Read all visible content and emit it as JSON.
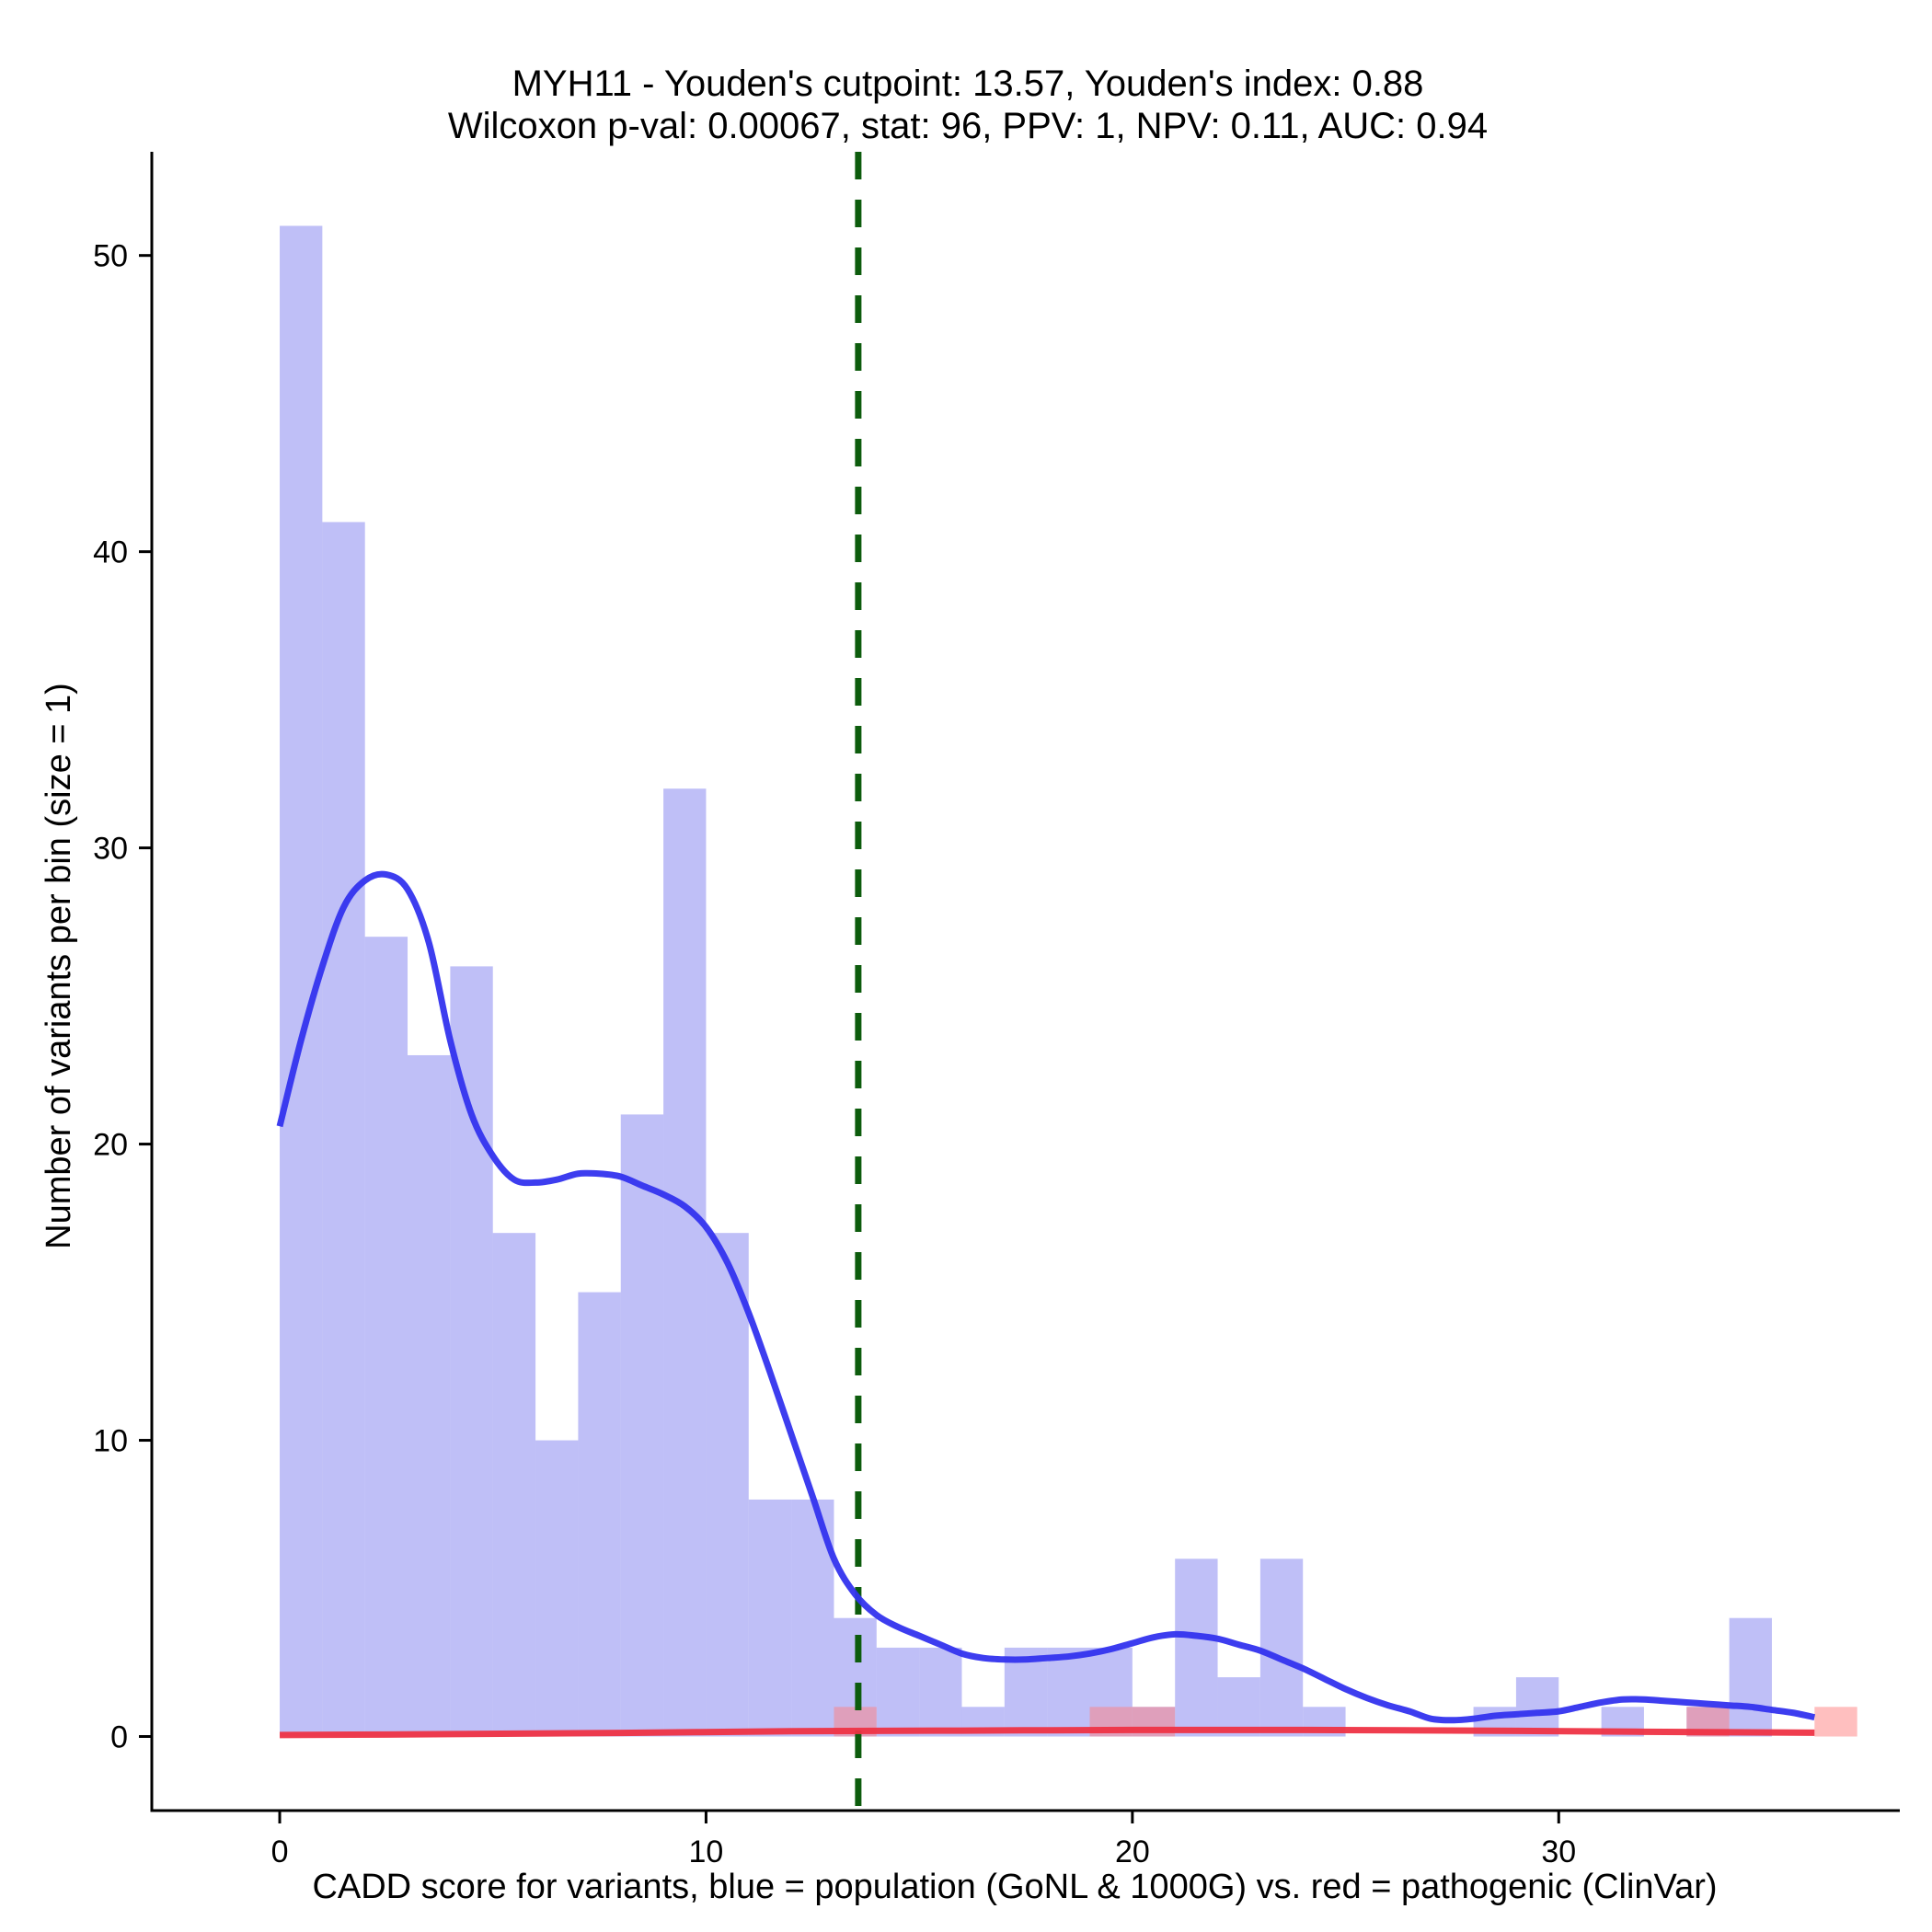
{
  "chart_data": {
    "type": "bar",
    "title_lines": [
      "MYH11 - Youden's cutpoint: 13.57, Youden's index: 0.88",
      "Wilcoxon p-val: 0.00067, stat: 96, PPV: 1, NPV: 0.11, AUC: 0.94"
    ],
    "xlabel": "CADD score for variants, blue = population (GoNL & 1000G) vs. red = pathogenic (ClinVar)",
    "ylabel": "Number of variants per bin (size = 1)",
    "xlim": [
      -3,
      38
    ],
    "ylim": [
      -2.5,
      53.5
    ],
    "xticks": [
      0,
      10,
      20,
      30
    ],
    "yticks": [
      0,
      10,
      20,
      30,
      40,
      50
    ],
    "bin_size": 1,
    "series": [
      {
        "name": "population (GoNL & 1000G)",
        "color": "#8080f0",
        "bins": [
          {
            "x": 0,
            "count": 51
          },
          {
            "x": 1,
            "count": 41
          },
          {
            "x": 2,
            "count": 27
          },
          {
            "x": 3,
            "count": 23
          },
          {
            "x": 4,
            "count": 26
          },
          {
            "x": 5,
            "count": 17
          },
          {
            "x": 6,
            "count": 10
          },
          {
            "x": 7,
            "count": 15
          },
          {
            "x": 8,
            "count": 21
          },
          {
            "x": 9,
            "count": 32
          },
          {
            "x": 10,
            "count": 17
          },
          {
            "x": 11,
            "count": 8
          },
          {
            "x": 12,
            "count": 8
          },
          {
            "x": 13,
            "count": 4
          },
          {
            "x": 14,
            "count": 3
          },
          {
            "x": 15,
            "count": 3
          },
          {
            "x": 16,
            "count": 1
          },
          {
            "x": 17,
            "count": 3
          },
          {
            "x": 18,
            "count": 3
          },
          {
            "x": 19,
            "count": 3
          },
          {
            "x": 20,
            "count": 1
          },
          {
            "x": 21,
            "count": 6
          },
          {
            "x": 22,
            "count": 2
          },
          {
            "x": 23,
            "count": 6
          },
          {
            "x": 24,
            "count": 1
          },
          {
            "x": 28,
            "count": 1
          },
          {
            "x": 29,
            "count": 2
          },
          {
            "x": 31,
            "count": 1
          },
          {
            "x": 33,
            "count": 1
          },
          {
            "x": 34,
            "count": 4
          }
        ]
      },
      {
        "name": "pathogenic (ClinVar)",
        "color": "#ff8080",
        "bins": [
          {
            "x": 13,
            "count": 1
          },
          {
            "x": 19,
            "count": 1
          },
          {
            "x": 20,
            "count": 1
          },
          {
            "x": 33,
            "count": 1
          },
          {
            "x": 36,
            "count": 1
          }
        ]
      }
    ],
    "density_curves": [
      {
        "name": "population density",
        "color": "#3333ee",
        "points": [
          [
            0,
            20.6
          ],
          [
            0.5,
            23.5
          ],
          [
            1,
            26
          ],
          [
            1.5,
            28
          ],
          [
            2,
            28.9
          ],
          [
            2.5,
            29.1
          ],
          [
            3,
            28.6
          ],
          [
            3.5,
            26.8
          ],
          [
            4,
            23.5
          ],
          [
            4.5,
            21
          ],
          [
            5,
            19.6
          ],
          [
            5.5,
            18.8
          ],
          [
            6,
            18.7
          ],
          [
            6.5,
            18.8
          ],
          [
            7,
            19.0
          ],
          [
            7.5,
            19.0
          ],
          [
            8,
            18.9
          ],
          [
            8.5,
            18.6
          ],
          [
            9,
            18.3
          ],
          [
            9.5,
            17.9
          ],
          [
            10,
            17.2
          ],
          [
            10.5,
            16
          ],
          [
            11,
            14.3
          ],
          [
            11.5,
            12.3
          ],
          [
            12,
            10.2
          ],
          [
            12.5,
            8.1
          ],
          [
            13,
            6.0
          ],
          [
            13.5,
            4.8
          ],
          [
            14,
            4.1
          ],
          [
            14.5,
            3.7
          ],
          [
            15,
            3.4
          ],
          [
            15.5,
            3.1
          ],
          [
            16,
            2.8
          ],
          [
            16.5,
            2.65
          ],
          [
            17,
            2.6
          ],
          [
            17.5,
            2.6
          ],
          [
            18,
            2.65
          ],
          [
            18.5,
            2.7
          ],
          [
            19,
            2.8
          ],
          [
            19.5,
            2.95
          ],
          [
            20,
            3.15
          ],
          [
            20.5,
            3.35
          ],
          [
            21,
            3.45
          ],
          [
            21.5,
            3.4
          ],
          [
            22,
            3.3
          ],
          [
            22.5,
            3.1
          ],
          [
            23,
            2.9
          ],
          [
            23.5,
            2.6
          ],
          [
            24,
            2.3
          ],
          [
            24.5,
            1.95
          ],
          [
            25,
            1.6
          ],
          [
            25.5,
            1.3
          ],
          [
            26,
            1.05
          ],
          [
            26.5,
            0.85
          ],
          [
            27,
            0.6
          ],
          [
            27.5,
            0.55
          ],
          [
            28,
            0.6
          ],
          [
            28.5,
            0.7
          ],
          [
            29,
            0.75
          ],
          [
            29.5,
            0.8
          ],
          [
            30,
            0.85
          ],
          [
            30.5,
            1.0
          ],
          [
            31,
            1.15
          ],
          [
            31.5,
            1.25
          ],
          [
            32,
            1.25
          ],
          [
            32.5,
            1.2
          ],
          [
            33,
            1.15
          ],
          [
            33.5,
            1.1
          ],
          [
            34,
            1.05
          ],
          [
            34.5,
            1.0
          ],
          [
            35,
            0.9
          ],
          [
            35.5,
            0.8
          ],
          [
            36,
            0.65
          ]
        ]
      },
      {
        "name": "pathogenic density",
        "color": "#ee3344",
        "points": [
          [
            0,
            0.05
          ],
          [
            4,
            0.08
          ],
          [
            8,
            0.12
          ],
          [
            12,
            0.18
          ],
          [
            16,
            0.2
          ],
          [
            20,
            0.22
          ],
          [
            24,
            0.22
          ],
          [
            28,
            0.2
          ],
          [
            32,
            0.16
          ],
          [
            36,
            0.13
          ]
        ]
      }
    ],
    "cutpoint": {
      "x": 13.57,
      "color": "#0d5c0d",
      "style": "dashed"
    }
  }
}
